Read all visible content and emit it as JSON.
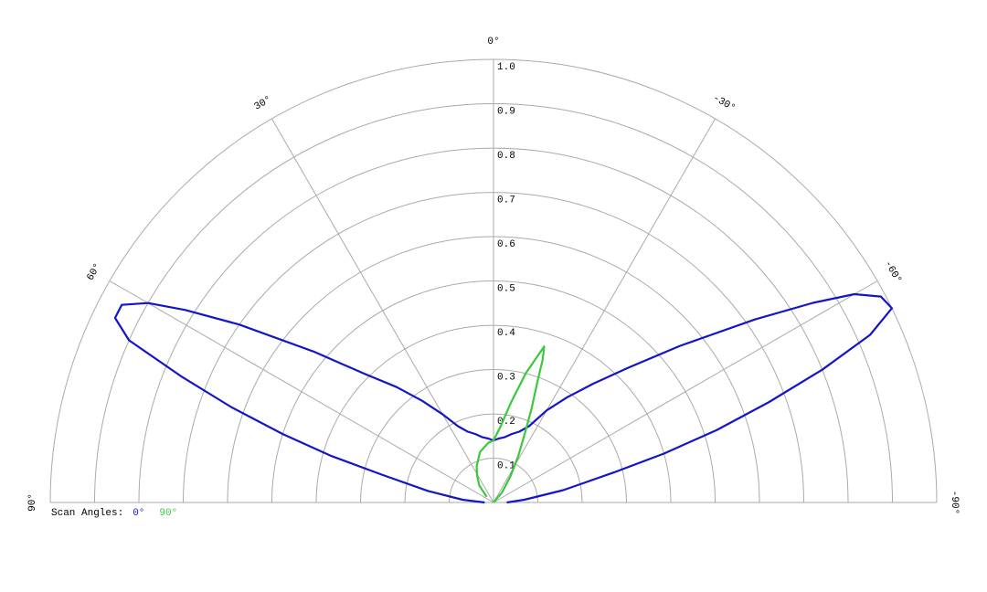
{
  "chart_data": {
    "type": "polar",
    "legend_title": "Scan Angles:",
    "theta_zero": "top",
    "theta_direction": "counterclockwise",
    "rlim": [
      0,
      1
    ],
    "rticks": [
      0.1,
      0.2,
      0.3,
      0.4,
      0.5,
      0.6,
      0.7,
      0.8,
      0.9,
      {
        "value": 1,
        "label": "1.0"
      }
    ],
    "thetaticks": [
      {
        "value": 90,
        "label": "90°"
      },
      {
        "value": 60,
        "label": "60°"
      },
      {
        "value": 30,
        "label": "30°"
      },
      {
        "value": 0,
        "label": "0°"
      },
      {
        "value": -30,
        "label": "-30°"
      },
      {
        "value": -60,
        "label": "-60°"
      },
      {
        "value": -90,
        "label": "-90°"
      }
    ],
    "series": [
      {
        "name": "0°",
        "color": "#1515c8",
        "theta": [
          90,
          85,
          80,
          76,
          74,
          72,
          70,
          68,
          66,
          64,
          62,
          60,
          58,
          55,
          50,
          45,
          40,
          35,
          30,
          25,
          20,
          15,
          10,
          5,
          0,
          -5,
          -10,
          -15,
          -20,
          -25,
          -30,
          -35,
          -40,
          -45,
          -50,
          -55,
          -58,
          -60,
          -62,
          -64,
          -66,
          -68,
          -70,
          -72,
          -74,
          -76,
          -80,
          -85,
          -90
        ],
        "r": [
          0.02,
          0.07,
          0.15,
          0.26,
          0.38,
          0.5,
          0.63,
          0.76,
          0.9,
          0.95,
          0.95,
          0.9,
          0.82,
          0.7,
          0.53,
          0.41,
          0.34,
          0.28,
          0.23,
          0.19,
          0.17,
          0.16,
          0.15,
          0.145,
          0.14,
          0.145,
          0.15,
          0.16,
          0.17,
          0.19,
          0.24,
          0.29,
          0.35,
          0.43,
          0.55,
          0.72,
          0.85,
          0.94,
          0.99,
          1.0,
          0.93,
          0.8,
          0.66,
          0.53,
          0.4,
          0.28,
          0.16,
          0.07,
          0.03
        ]
      },
      {
        "name": "90°",
        "color": "#3cc83c",
        "theta": [
          50,
          40,
          31,
          25,
          15,
          5,
          0,
          -5,
          -10,
          -14,
          -17,
          -18,
          -19,
          -20,
          -22,
          -24,
          -28,
          -33,
          -40,
          -50
        ],
        "r": [
          0.02,
          0.05,
          0.072,
          0.09,
          0.118,
          0.135,
          0.14,
          0.17,
          0.23,
          0.3,
          0.35,
          0.37,
          0.34,
          0.29,
          0.23,
          0.18,
          0.12,
          0.07,
          0.03,
          0
        ]
      }
    ]
  }
}
